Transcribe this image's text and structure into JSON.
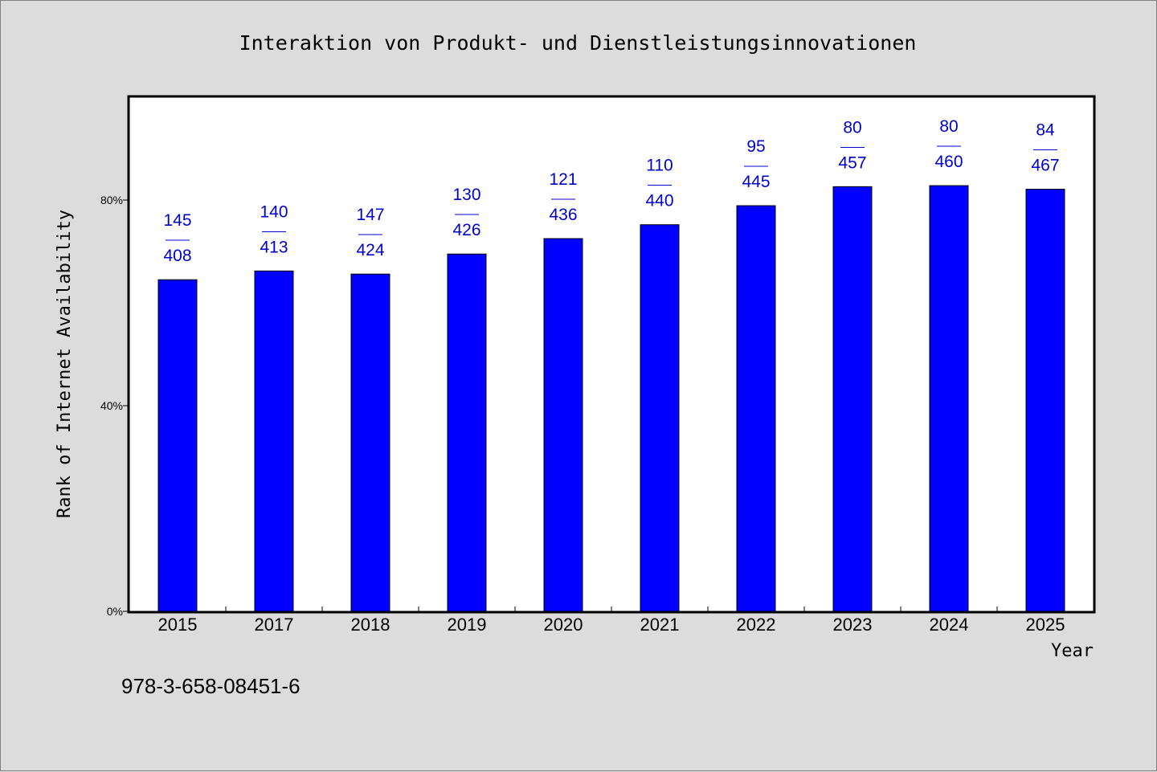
{
  "chart_data": {
    "type": "bar",
    "title": "Interaktion von Produkt- und Dienstleistungsinnovationen",
    "xlabel": "Year",
    "ylabel": "Rank of Internet Availability",
    "footer": "978-3-658-08451-6",
    "categories": [
      "2015",
      "2017",
      "2018",
      "2019",
      "2020",
      "2021",
      "2022",
      "2023",
      "2024",
      "2025"
    ],
    "series": [
      {
        "values": [
          64.5,
          66.2,
          65.6,
          69.5,
          72.5,
          75.2,
          78.9,
          82.6,
          82.8,
          82.1
        ],
        "color": "#0000ff"
      }
    ],
    "labels": [
      {
        "top": "145",
        "sep": "——",
        "bottom": "408"
      },
      {
        "top": "140",
        "sep": "——",
        "bottom": "413"
      },
      {
        "top": "147",
        "sep": "——",
        "bottom": "424"
      },
      {
        "top": "130",
        "sep": "——",
        "bottom": "426"
      },
      {
        "top": "121",
        "sep": "——",
        "bottom": "436"
      },
      {
        "top": "110",
        "sep": "——",
        "bottom": "440"
      },
      {
        "top": "95",
        "sep": "——",
        "bottom": "445"
      },
      {
        "top": "80",
        "sep": "——",
        "bottom": "457"
      },
      {
        "top": "80",
        "sep": "——",
        "bottom": "460"
      },
      {
        "top": "84",
        "sep": "——",
        "bottom": "467"
      }
    ],
    "yticks": [
      0,
      40,
      80
    ],
    "ytick_labels": [
      "0%",
      "40%",
      "80%"
    ],
    "ylim": [
      0,
      100
    ],
    "grid": false,
    "label_color": "#0000cd"
  }
}
